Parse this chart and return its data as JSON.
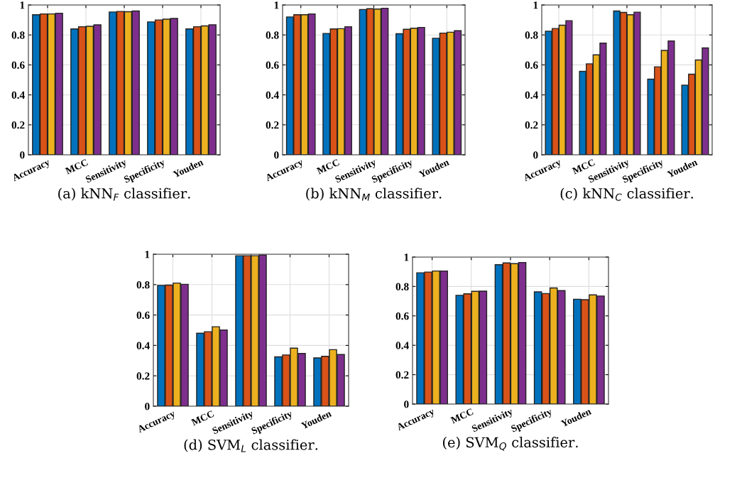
{
  "chart_data": [
    {
      "type": "bar",
      "title": "(a) kNN$_{F}$ classifier.",
      "categories": [
        "Accuracy",
        "MCC",
        "Sensitivity",
        "Specificity",
        "Youden"
      ],
      "ylim": [
        0,
        1
      ],
      "yticks": [
        0,
        0.2,
        0.4,
        0.6,
        0.8,
        1
      ],
      "grid": true,
      "series": [
        {
          "color": "#0072bd",
          "values": [
            0.935,
            0.84,
            0.953,
            0.887,
            0.84
          ]
        },
        {
          "color": "#d95319",
          "values": [
            0.94,
            0.855,
            0.957,
            0.9,
            0.855
          ]
        },
        {
          "color": "#edb120",
          "values": [
            0.94,
            0.858,
            0.955,
            0.905,
            0.86
          ]
        },
        {
          "color": "#7e2f8e",
          "values": [
            0.945,
            0.867,
            0.96,
            0.91,
            0.868
          ]
        }
      ]
    },
    {
      "type": "bar",
      "title": "(b) kNN$_{M}$ classifier.",
      "categories": [
        "Accuracy",
        "MCC",
        "Sensitivity",
        "Specificity",
        "Youden"
      ],
      "ylim": [
        0,
        1
      ],
      "yticks": [
        0,
        0.2,
        0.4,
        0.6,
        0.8,
        1
      ],
      "grid": true,
      "series": [
        {
          "color": "#0072bd",
          "values": [
            0.92,
            0.81,
            0.97,
            0.808,
            0.778
          ]
        },
        {
          "color": "#d95319",
          "values": [
            0.935,
            0.84,
            0.975,
            0.838,
            0.812
          ]
        },
        {
          "color": "#edb120",
          "values": [
            0.935,
            0.842,
            0.973,
            0.845,
            0.818
          ]
        },
        {
          "color": "#7e2f8e",
          "values": [
            0.94,
            0.855,
            0.978,
            0.85,
            0.828
          ]
        }
      ]
    },
    {
      "type": "bar",
      "title": "(c) kNN$_{C}$ classifier.",
      "categories": [
        "Accuracy",
        "MCC",
        "Sensitivity",
        "Specificity",
        "Youden"
      ],
      "ylim": [
        0,
        1
      ],
      "yticks": [
        0,
        0.2,
        0.4,
        0.6,
        0.8,
        1
      ],
      "grid": true,
      "series": [
        {
          "color": "#0072bd",
          "values": [
            0.825,
            0.557,
            0.96,
            0.505,
            0.465
          ]
        },
        {
          "color": "#d95319",
          "values": [
            0.843,
            0.607,
            0.95,
            0.587,
            0.538
          ]
        },
        {
          "color": "#edb120",
          "values": [
            0.865,
            0.667,
            0.935,
            0.697,
            0.633
          ]
        },
        {
          "color": "#7e2f8e",
          "values": [
            0.895,
            0.745,
            0.952,
            0.76,
            0.713
          ]
        }
      ]
    },
    {
      "type": "bar",
      "title": "(d) SVM$_{L}$ classifier.",
      "categories": [
        "Accuracy",
        "MCC",
        "Sensitivity",
        "Specificity",
        "Youden"
      ],
      "ylim": [
        0,
        1
      ],
      "yticks": [
        0,
        0.2,
        0.4,
        0.6,
        0.8,
        1
      ],
      "grid": true,
      "series": [
        {
          "color": "#0072bd",
          "values": [
            0.795,
            0.48,
            0.99,
            0.325,
            0.318
          ]
        },
        {
          "color": "#d95319",
          "values": [
            0.797,
            0.49,
            0.99,
            0.337,
            0.328
          ]
        },
        {
          "color": "#edb120",
          "values": [
            0.81,
            0.523,
            0.99,
            0.382,
            0.372
          ]
        },
        {
          "color": "#7e2f8e",
          "values": [
            0.802,
            0.502,
            0.995,
            0.347,
            0.34
          ]
        }
      ]
    },
    {
      "type": "bar",
      "title": "(e) SVM$_{Q}$ classifier.",
      "categories": [
        "Accuracy",
        "MCC",
        "Sensitivity",
        "Specificity",
        "Youden"
      ],
      "ylim": [
        0,
        1
      ],
      "yticks": [
        0,
        0.2,
        0.4,
        0.6,
        0.8,
        1
      ],
      "grid": true,
      "series": [
        {
          "color": "#0072bd",
          "values": [
            0.893,
            0.74,
            0.948,
            0.763,
            0.713
          ]
        },
        {
          "color": "#d95319",
          "values": [
            0.898,
            0.75,
            0.96,
            0.752,
            0.71
          ]
        },
        {
          "color": "#edb120",
          "values": [
            0.905,
            0.767,
            0.955,
            0.79,
            0.743
          ]
        },
        {
          "color": "#7e2f8e",
          "values": [
            0.905,
            0.768,
            0.963,
            0.772,
            0.735
          ]
        }
      ]
    }
  ]
}
